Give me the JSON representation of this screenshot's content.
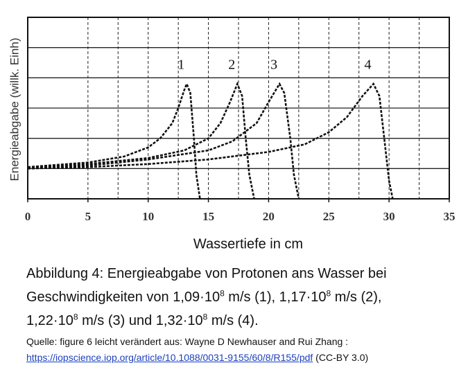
{
  "chart_data": {
    "type": "line",
    "y_label": "Energieabgabe (willk. Einh)",
    "x_label": "Wassertiefe in cm",
    "xlim": [
      0,
      35
    ],
    "xticks": [
      0,
      5,
      10,
      15,
      20,
      25,
      30,
      35
    ],
    "ylim": [
      0,
      6
    ],
    "ygrid": [
      1,
      2,
      3,
      4,
      5
    ],
    "xgrid": [
      5,
      7.5,
      10,
      12.5,
      15,
      17.5,
      20,
      22.5,
      25,
      27.5,
      30,
      32.5
    ],
    "series": [
      {
        "name": "1",
        "color": "#111111",
        "x": [
          0,
          5,
          8,
          10,
          11,
          12,
          12.5,
          13,
          13.2,
          13.5,
          13.8,
          14,
          14.3
        ],
        "values": [
          1.05,
          1.2,
          1.4,
          1.7,
          2.0,
          2.5,
          3.0,
          3.6,
          3.8,
          3.5,
          2.0,
          0.8,
          0
        ]
      },
      {
        "name": "2",
        "color": "#111111",
        "x": [
          0,
          5,
          10,
          13,
          15,
          16,
          16.8,
          17.4,
          17.8,
          18.1,
          18.4,
          18.8
        ],
        "values": [
          1.0,
          1.15,
          1.35,
          1.6,
          2.0,
          2.5,
          3.2,
          3.8,
          3.4,
          2.0,
          0.8,
          0
        ]
      },
      {
        "name": "3",
        "color": "#111111",
        "x": [
          0,
          5,
          10,
          15,
          17,
          19,
          20,
          20.9,
          21.3,
          21.8,
          22.1,
          22.5
        ],
        "values": [
          1.0,
          1.1,
          1.3,
          1.6,
          1.9,
          2.5,
          3.2,
          3.8,
          3.5,
          2.0,
          0.8,
          0
        ]
      },
      {
        "name": "4",
        "color": "#111111",
        "x": [
          0,
          5,
          10,
          15,
          20,
          23,
          25,
          26.5,
          27.8,
          28.7,
          29.2,
          29.6,
          30,
          30.3
        ],
        "values": [
          1.0,
          1.05,
          1.15,
          1.3,
          1.55,
          1.8,
          2.2,
          2.7,
          3.4,
          3.8,
          3.4,
          2.0,
          0.6,
          0
        ]
      }
    ]
  },
  "caption": [
    [
      "Abbildung 4: Energieabgabe von Protonen ans Wasser bei"
    ],
    [
      "Geschwindigkeiten von 1,09·10",
      {
        "sup": "8"
      },
      " m/s (1), 1,17·10",
      {
        "sup": "8"
      },
      " m/s (2),"
    ],
    [
      "1,22·10",
      {
        "sup": "8"
      },
      " m/s (3) und 1,32·10",
      {
        "sup": "8"
      },
      " m/s (4)."
    ]
  ],
  "source": {
    "text": "Quelle: figure 6 leicht verändert aus: Wayne D Newhauser and Rui Zhang :",
    "link": "https://iopscience.iop.org/article/10.1088/0031-9155/60/8/R155/pdf",
    "license": " (CC-BY 3.0)"
  }
}
